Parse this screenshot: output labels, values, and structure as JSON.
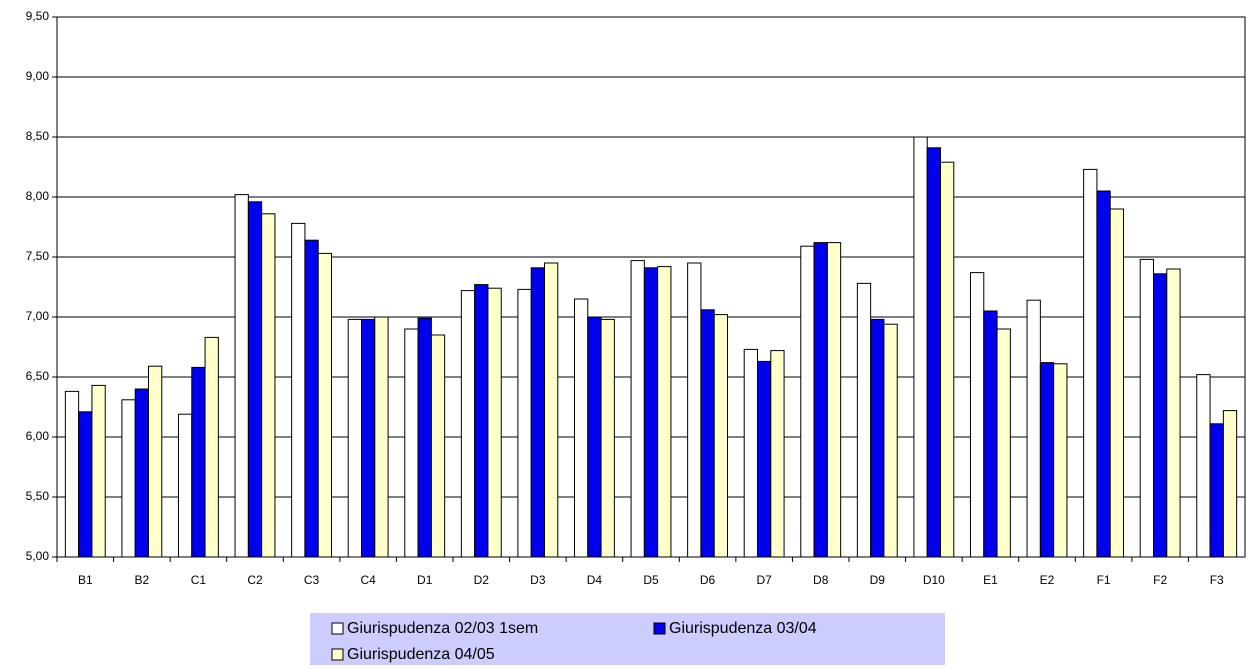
{
  "chart_data": {
    "type": "bar",
    "categories": [
      "B1",
      "B2",
      "C1",
      "C2",
      "C3",
      "C4",
      "D1",
      "D2",
      "D3",
      "D4",
      "D5",
      "D6",
      "D7",
      "D8",
      "D9",
      "D10",
      "E1",
      "E2",
      "F1",
      "F2",
      "F3"
    ],
    "series": [
      {
        "name": "Giurispudenza 02/03 1sem",
        "color": "#ffffff",
        "values": [
          6.38,
          6.31,
          6.19,
          8.02,
          7.78,
          6.98,
          6.9,
          7.22,
          7.23,
          7.15,
          7.47,
          7.45,
          6.73,
          7.59,
          7.28,
          8.5,
          7.37,
          7.14,
          8.23,
          7.48,
          6.52
        ]
      },
      {
        "name": "Giurispudenza 03/04",
        "color": "#0000ee",
        "values": [
          6.21,
          6.4,
          6.58,
          7.96,
          7.64,
          6.98,
          6.99,
          7.27,
          7.41,
          7.0,
          7.41,
          7.06,
          6.63,
          7.62,
          6.98,
          8.41,
          7.05,
          6.62,
          8.05,
          7.36,
          6.11
        ]
      },
      {
        "name": "Giurispudenza 04/05",
        "color": "#ffffcc",
        "values": [
          6.43,
          6.59,
          6.83,
          7.86,
          7.53,
          7.0,
          6.85,
          7.24,
          7.45,
          6.98,
          7.42,
          7.02,
          6.72,
          7.62,
          6.94,
          8.29,
          6.9,
          6.61,
          7.9,
          7.4,
          6.22
        ]
      }
    ],
    "ylim": [
      5,
      9.5
    ],
    "yticks": [
      {
        "value": 5,
        "label": "5,00"
      },
      {
        "value": 5.5,
        "label": "5,50"
      },
      {
        "value": 6,
        "label": "6,00"
      },
      {
        "value": 6.5,
        "label": "6,50"
      },
      {
        "value": 7,
        "label": "7,00"
      },
      {
        "value": 7.5,
        "label": "7,50"
      },
      {
        "value": 8,
        "label": "8,00"
      },
      {
        "value": 8.5,
        "label": "8,50"
      },
      {
        "value": 9,
        "label": "9,00"
      },
      {
        "value": 9.5,
        "label": "9,50"
      }
    ],
    "grid": true,
    "legend": "bottom"
  }
}
